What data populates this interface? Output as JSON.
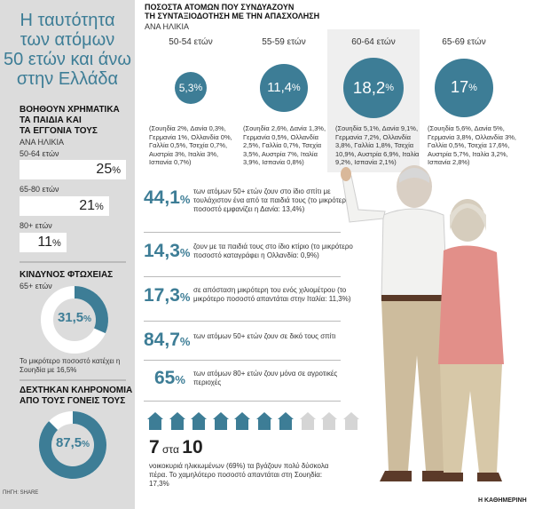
{
  "sidebar": {
    "title_lines": [
      "Η ταυτότητα",
      "των ατόμων",
      "50 ετών και άνω",
      "στην Ελλάδα"
    ],
    "help": {
      "heading_lines": [
        "ΒΟΗΘΟΥΝ ΧΡΗΜΑΤΙΚΑ",
        "ΤΑ ΠΑΙΔΙΑ ΚΑΙ",
        "ΤΑ ΕΓΓΟΝΙΑ ΤΟΥΣ"
      ],
      "subheading": "ΑΝΑ ΗΛΙΚΙΑ",
      "bars": [
        {
          "label": "50-64 ετών",
          "value": "25",
          "unit": "%"
        },
        {
          "label": "65-80 ετών",
          "value": "21",
          "unit": "%"
        },
        {
          "label": "80+ ετών",
          "value": "11",
          "unit": "%"
        }
      ]
    },
    "poverty": {
      "heading": "ΚΙΝΔΥΝΟΣ ΦΤΩΧΕΙΑΣ",
      "subheading": "65+ ετών",
      "value": "31,5",
      "unit": "%",
      "note": "Το μικρότερο ποσοστό κατέχει η Σουηδία με 16,5%"
    },
    "inheritance": {
      "heading_lines": [
        "ΔΕΧΤΗΚΑΝ ΚΛΗΡΟΝΟΜΙΑ",
        "ΑΠΟ ΤΟΥΣ ΓΟΝΕΙΣ ΤΟΥΣ"
      ],
      "value": "87,5",
      "unit": "%"
    }
  },
  "chart_data": [
    {
      "type": "bar",
      "title": "ΒΟΗΘΟΥΝ ΧΡΗΜΑΤΙΚΑ ΤΑ ΠΑΙΔΙΑ ΚΑΙ ΤΑ ΕΓΓΟΝΙΑ ΤΟΥΣ",
      "subtitle": "ΑΝΑ ΗΛΙΚΙΑ",
      "categories": [
        "50-64 ετών",
        "65-80 ετών",
        "80+ ετών"
      ],
      "values": [
        25,
        21,
        11
      ]
    },
    {
      "type": "pie",
      "title": "ΚΙΝΔΥΝΟΣ ΦΤΩΧΕΙΑΣ",
      "subtitle": "65+ ετών",
      "values": [
        31.5
      ]
    },
    {
      "type": "pie",
      "title": "ΔΕΧΤΗΚΑΝ ΚΛΗΡΟΝΟΜΙΑ ΑΠΟ ΤΟΥΣ ΓΟΝΕΙΣ ΤΟΥΣ",
      "values": [
        87.5
      ]
    },
    {
      "type": "scatter",
      "title": "ΠΟΣΟΣΤΑ ΑΤΟΜΩΝ ΠΟΥ ΣΥΝΔΥΑΖΟΥΝ ΤΗ ΣΥΝΤΑΞΙΟΔΟΤΗΣΗ ΜΕ ΤΗΝ ΑΠΑΣΧΟΛΗΣΗ",
      "subtitle": "ΑΝΑ ΗΛΙΚΙΑ",
      "categories": [
        "50-54 ετών",
        "55-59 ετών",
        "60-64 ετών",
        "65-69 ετών"
      ],
      "values": [
        5.3,
        11.4,
        18.2,
        17
      ]
    },
    {
      "type": "bar",
      "title": "7 στα 10",
      "values": [
        7
      ],
      "ylim": [
        0,
        10
      ]
    }
  ],
  "employment": {
    "title_line1": "ΠΟΣΟΣΤΑ ΑΤΟΜΩΝ ΠΟΥ ΣΥΝΔΥΑΖΟΥΝ",
    "title_line2": "ΤΗ ΣΥΝΤΑΞΙΟΔΟΤΗΣΗ ΜΕ ΤΗΝ ΑΠΑΣΧΟΛΗΣΗ",
    "subtitle": "ΑΝΑ ΗΛΙΚΙΑ",
    "columns": [
      {
        "label": "50-54 ετών",
        "value": "5,3",
        "unit": "%",
        "note": "(Σουηδία 2%, Δανία 0,3%, Γερμανία 1%, Ολλανδία 0%, Γαλλία 0,5%, Τσεχία 0,7%, Αυστρία 3%, Ιταλία 3%, Ισπανία 0,7%)"
      },
      {
        "label": "55-59 ετών",
        "value": "11,4",
        "unit": "%",
        "note": "(Σουηδία 2,6%, Δανία 1,3%, Γερμανία 0,5%, Ολλανδία 2,5%, Γαλλία 0,7%, Τσεχία 3,5%, Αυστρία 7%, Ιταλία 3,9%, Ισπανία 0,8%)"
      },
      {
        "label": "60-64 ετών",
        "value": "18,2",
        "unit": "%",
        "note": "(Σουηδία 5,1%, Δανία 9,1%, Γερμανία 7,2%, Ολλανδία 3,8%, Γαλλία 1,8%, Τσεχία 10,9%, Αυστρία 6,9%, Ιταλία 9,2%, Ισπανία 2,1%)"
      },
      {
        "label": "65-69 ετών",
        "value": "17",
        "unit": "%",
        "note": "(Σουηδία 5,6%, Δανία 5%, Γερμανία 3,8%, Ολλανδία 3%, Γαλλία 0,5%, Τσεχία 17,6%, Αυστρία 5,7%, Ιταλία 3,2%, Ισπανία 2,8%)"
      }
    ]
  },
  "stats": [
    {
      "value": "44,1",
      "unit": "%",
      "text": "των ατόμων 50+ ετών ζουν στο ίδιο σπίτι με τουλάχιστον ένα από τα παιδιά τους (το μικρότερο ποσοστό εμφανίζει η Δανία: 13,4%)"
    },
    {
      "value": "14,3",
      "unit": "%",
      "text": "ζουν με τα παιδιά τους στο ίδιο κτίριο (το μικρότερο ποσοστό καταγράφει η Ολλανδία: 0,9%)"
    },
    {
      "value": "17,3",
      "unit": "%",
      "text": "σε απόσταση μικρότερη του ενός χιλιομέτρου (το μικρότερο ποσοστό απαντάται στην Ιταλία: 11,3%)"
    },
    {
      "value": "84,7",
      "unit": "%",
      "text": "των ατόμων 50+ ετών ζουν σε δικό τους σπίτι"
    },
    {
      "value": "65",
      "unit": "%",
      "text": "των ατόμων 80+ ετών ζουν μόνα σε αγροτικές περιοχές"
    }
  ],
  "households": {
    "headline_a": "7",
    "headline_mid": " στα ",
    "headline_b": "10",
    "text": "νοικοκυριά ηλικιωμένων (69%) τα βγάζουν πολύ δύσκολα πέρα. Το χαμηλότερο ποσοστό απαντάται στη Σουηδία: 17,3%",
    "filled": 7,
    "total": 10,
    "color_filled": "#3d7d96",
    "color_empty": "#d5d5d5"
  },
  "footer": {
    "source": "ΠΗΓΗ: SHARE",
    "brand": "Η ΚΑΘΗΜΕΡΙΝΗ"
  },
  "colors": {
    "accent": "#3d7d96",
    "sidebar": "#dcdcdc"
  }
}
